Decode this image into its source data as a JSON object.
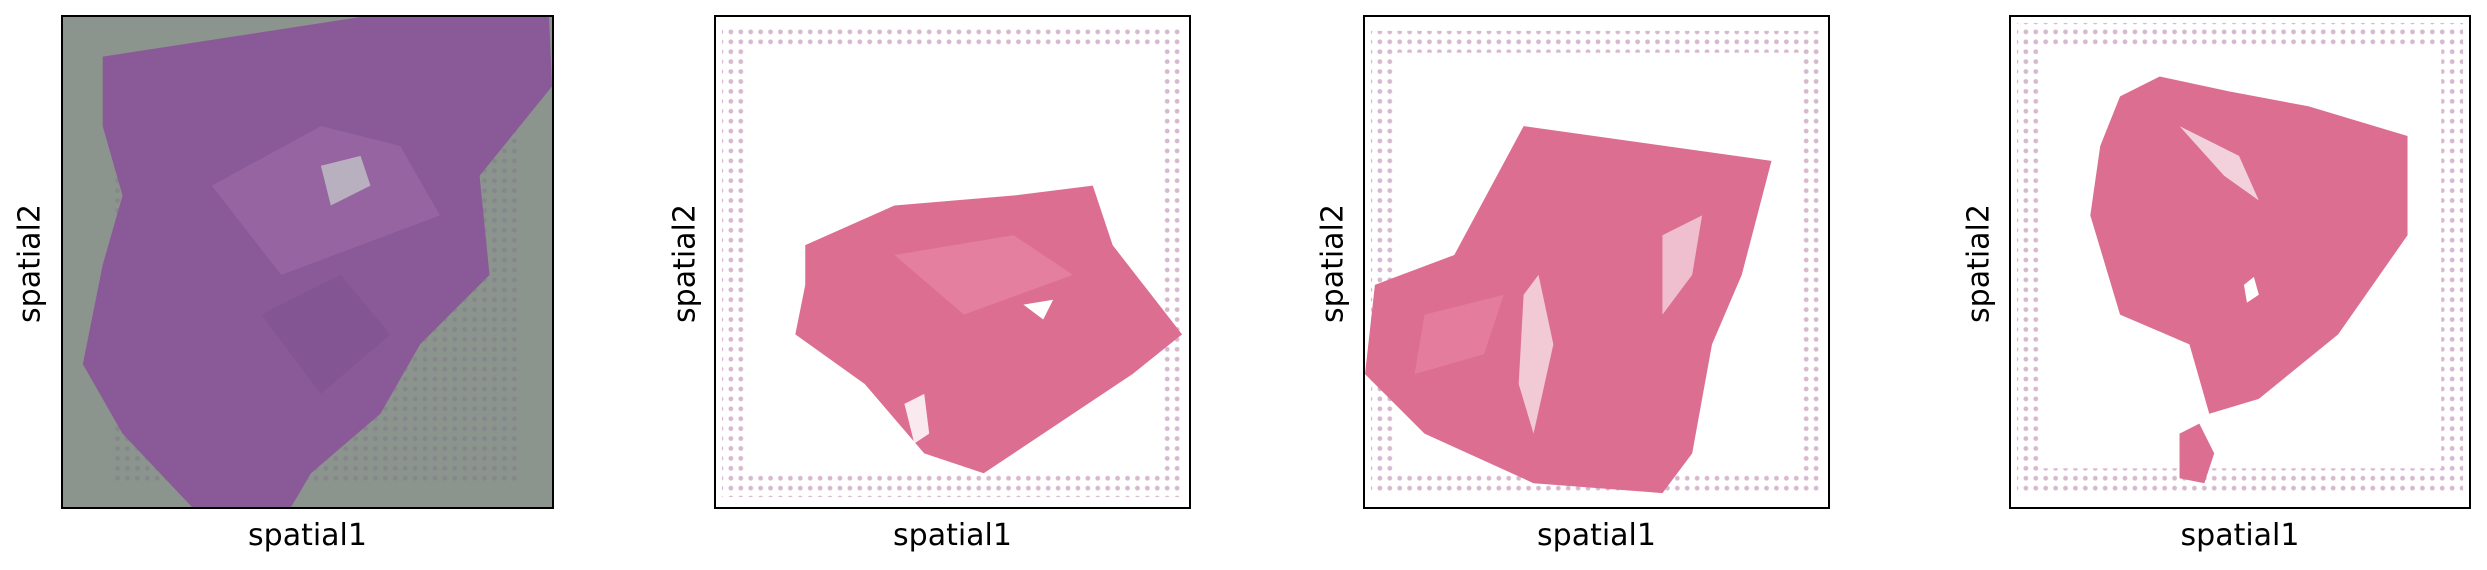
{
  "figure": {
    "panels": [
      {
        "xlabel": "spatial1",
        "ylabel": "spatial2",
        "stain": "purple tissue section on gray background"
      },
      {
        "xlabel": "spatial1",
        "ylabel": "spatial2",
        "stain": "pink tissue section on white background"
      },
      {
        "xlabel": "spatial1",
        "ylabel": "spatial2",
        "stain": "pink tissue section on white background"
      },
      {
        "xlabel": "spatial1",
        "ylabel": "spatial2",
        "stain": "pink tissue section on white background"
      }
    ]
  },
  "colors": {
    "tissue_purple": "#8a5a98",
    "tissue_pink": "#dc6e92",
    "background_gray": "#8c948e",
    "spot_dots": "#d7b8cf"
  }
}
